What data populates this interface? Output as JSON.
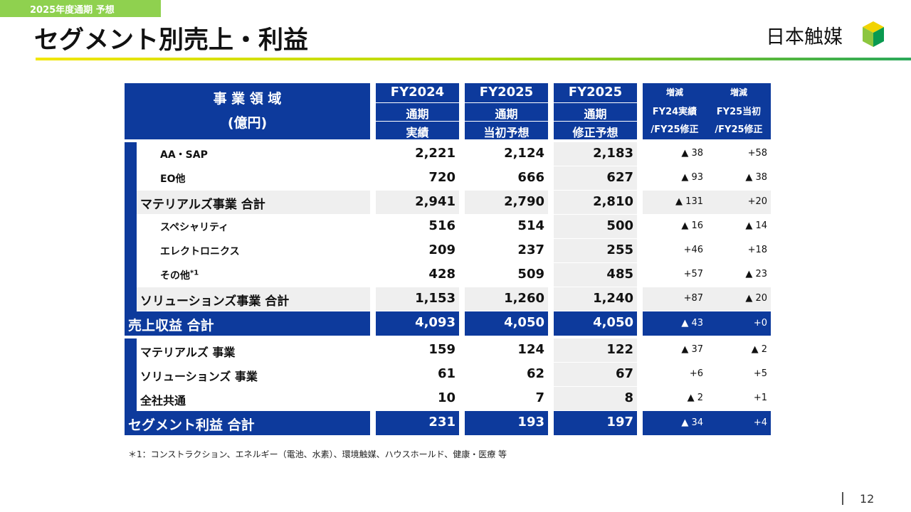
{
  "header": {
    "tag": "2025年度通期 予想",
    "title": "セグメント別売上・利益",
    "logo": "日本触媒"
  },
  "table": {
    "head": [
      [
        "事 業 領 域",
        "(億円)"
      ],
      [
        "FY2024",
        "通期",
        "実績"
      ],
      [
        "FY2025",
        "通期",
        "当初予想"
      ],
      [
        "FY2025",
        "通期",
        "修正予想"
      ],
      [
        "増減",
        "FY24実績",
        "/FY25修正"
      ],
      [
        "増減",
        "FY25当初",
        "/FY25修正"
      ]
    ],
    "sales": {
      "groups": [
        {
          "items": [
            {
              "label": "AA・SAP",
              "cells": [
                "2,221",
                "2,124",
                "2,183",
                "▲ 38",
                "+58"
              ]
            },
            {
              "label": "EO他",
              "cells": [
                "720",
                "666",
                "627",
                "▲ 93",
                "▲ 38"
              ]
            }
          ],
          "subtotal": {
            "label": "マテリアルズ事業 合計",
            "cells": [
              "2,941",
              "2,790",
              "2,810",
              "▲ 131",
              "+20"
            ]
          }
        },
        {
          "items": [
            {
              "label": "スペシャリティ",
              "cells": [
                "516",
                "514",
                "500",
                "▲ 16",
                "▲ 14"
              ]
            },
            {
              "label": "エレクトロニクス",
              "cells": [
                "209",
                "237",
                "255",
                "+46",
                "+18"
              ]
            },
            {
              "label": "その他",
              "note": "*1",
              "cells": [
                "428",
                "509",
                "485",
                "+57",
                "▲ 23"
              ]
            }
          ],
          "subtotal": {
            "label": "ソリューションズ事業 合計",
            "cells": [
              "1,153",
              "1,260",
              "1,240",
              "+87",
              "▲ 20"
            ]
          }
        }
      ],
      "total": {
        "label": "売上収益 合計",
        "cells": [
          "4,093",
          "4,050",
          "4,050",
          "▲ 43",
          "+0"
        ]
      }
    },
    "profit": {
      "items": [
        {
          "label": "マテリアルズ 事業",
          "cells": [
            "159",
            "124",
            "122",
            "▲ 37",
            "▲ 2"
          ]
        },
        {
          "label": "ソリューションズ 事業",
          "cells": [
            "61",
            "62",
            "67",
            "+6",
            "+5"
          ]
        },
        {
          "label": "全社共通",
          "cells": [
            "10",
            "7",
            "8",
            "▲ 2",
            "+1"
          ]
        }
      ],
      "total": {
        "label": "セグメント利益 合計",
        "cells": [
          "231",
          "193",
          "197",
          "▲ 34",
          "+4"
        ]
      }
    }
  },
  "footnote": "＊1：コンストラクション、エネルギー（電池、水素）、環境触媒、ハウスホールド、健康・医療 等",
  "page": "12"
}
